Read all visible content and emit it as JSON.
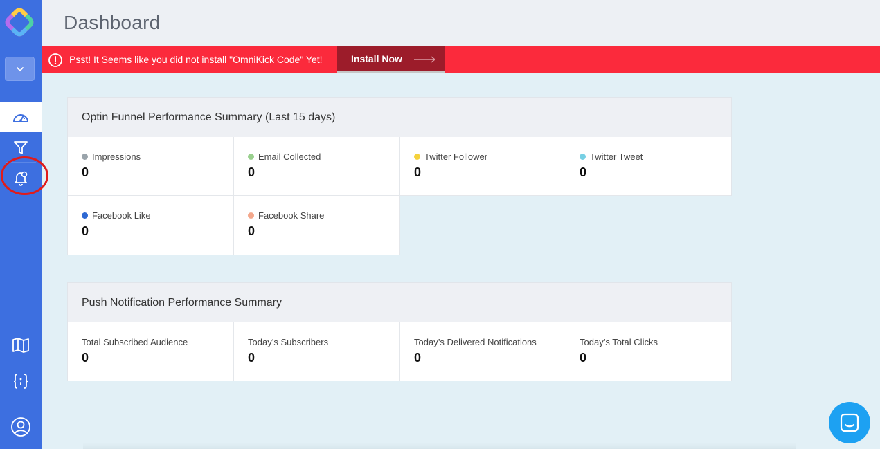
{
  "header": {
    "title": "Dashboard"
  },
  "alert": {
    "message": "Psst! It Seems like you did not install \"OmniKick Code\" Yet!",
    "button_label": "Install Now"
  },
  "sidebar": {
    "items": [
      {
        "icon": "dashboard-icon",
        "active": true
      },
      {
        "icon": "funnel-icon",
        "active": false
      },
      {
        "icon": "bell-icon",
        "active": false
      },
      {
        "icon": "book-icon",
        "active": false
      },
      {
        "icon": "code-braces-icon",
        "active": false
      },
      {
        "icon": "user-icon",
        "active": false
      }
    ]
  },
  "optin": {
    "title": "Optin Funnel Performance Summary (Last 15 days)",
    "stats": [
      {
        "label": "Impressions",
        "value": "0",
        "color": "#9aa4ab"
      },
      {
        "label": "Email Collected",
        "value": "0",
        "color": "#99d08e"
      },
      {
        "label": "Twitter Follower",
        "value": "0",
        "color": "#f5d23c"
      },
      {
        "label": "Twitter Tweet",
        "value": "0",
        "color": "#77d0e4"
      },
      {
        "label": "Facebook Like",
        "value": "0",
        "color": "#2d68d3"
      },
      {
        "label": "Facebook Share",
        "value": "0",
        "color": "#f4a88c"
      }
    ]
  },
  "push": {
    "title": "Push Notification Performance Summary",
    "stats": [
      {
        "label": "Total Subscribed Audience",
        "value": "0"
      },
      {
        "label": "Today’s Subscribers",
        "value": "0"
      },
      {
        "label": "Today’s Delivered Notifications",
        "value": "0"
      },
      {
        "label": "Today’s Total Clicks",
        "value": "0"
      }
    ]
  },
  "colors": {
    "sidebar": "#3d6fe0",
    "alert": "#fb2a3c",
    "install_button": "#9c1c2a",
    "chat": "#1da1f2"
  }
}
